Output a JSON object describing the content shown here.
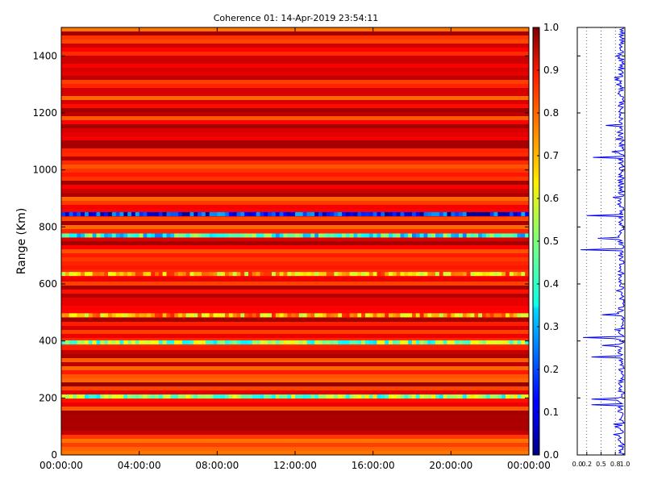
{
  "chart_data": [
    {
      "type": "heatmap",
      "title": "Coherence 01: 14-Apr-2019 23:54:11",
      "ylabel": "Range (Km)",
      "xlabel": "",
      "x_ticks": [
        "00:00:00",
        "04:00:00",
        "08:00:00",
        "12:00:00",
        "16:00:00",
        "20:00:00",
        "00:00:00"
      ],
      "y_ticks": [
        0,
        200,
        400,
        600,
        800,
        1000,
        1200,
        1400
      ],
      "ylim": [
        0,
        1500
      ],
      "colormap": "jet",
      "colorbar": {
        "range": [
          0.0,
          1.0
        ],
        "ticks": [
          "0.0",
          "0.1",
          "0.2",
          "0.3",
          "0.4",
          "0.5",
          "0.6",
          "0.7",
          "0.8",
          "0.9",
          "1.0"
        ]
      },
      "grid": false,
      "low_coherence_bands": [
        {
          "range_km": 845,
          "coherence": 0.15
        },
        {
          "range_km": 770,
          "coherence": 0.4
        },
        {
          "range_km": 395,
          "coherence": 0.5
        },
        {
          "range_km": 205,
          "coherence": 0.5
        },
        {
          "range_km": 490,
          "coherence": 0.7
        },
        {
          "range_km": 635,
          "coherence": 0.7
        }
      ],
      "typical_coherence": 0.88
    },
    {
      "type": "line",
      "series_color": "#0000ff",
      "x_ticks": [
        "0.0",
        "0.2",
        "0.5",
        "0.8",
        "1.0"
      ],
      "xlim": [
        0,
        1
      ],
      "ylim": [
        0,
        1500
      ],
      "gridlines_x": [
        0.2,
        0.5,
        0.8
      ],
      "dips": [
        {
          "range_km": 1300,
          "value": 0.82
        },
        {
          "range_km": 1155,
          "value": 0.6
        },
        {
          "range_km": 1045,
          "value": 0.33
        },
        {
          "range_km": 840,
          "value": 0.2
        },
        {
          "range_km": 760,
          "value": 0.43
        },
        {
          "range_km": 720,
          "value": 0.07
        },
        {
          "range_km": 490,
          "value": 0.52
        },
        {
          "range_km": 410,
          "value": 0.12
        },
        {
          "range_km": 385,
          "value": 0.52
        },
        {
          "range_km": 345,
          "value": 0.3
        },
        {
          "range_km": 195,
          "value": 0.3
        },
        {
          "range_km": 175,
          "value": 0.3
        }
      ]
    }
  ]
}
